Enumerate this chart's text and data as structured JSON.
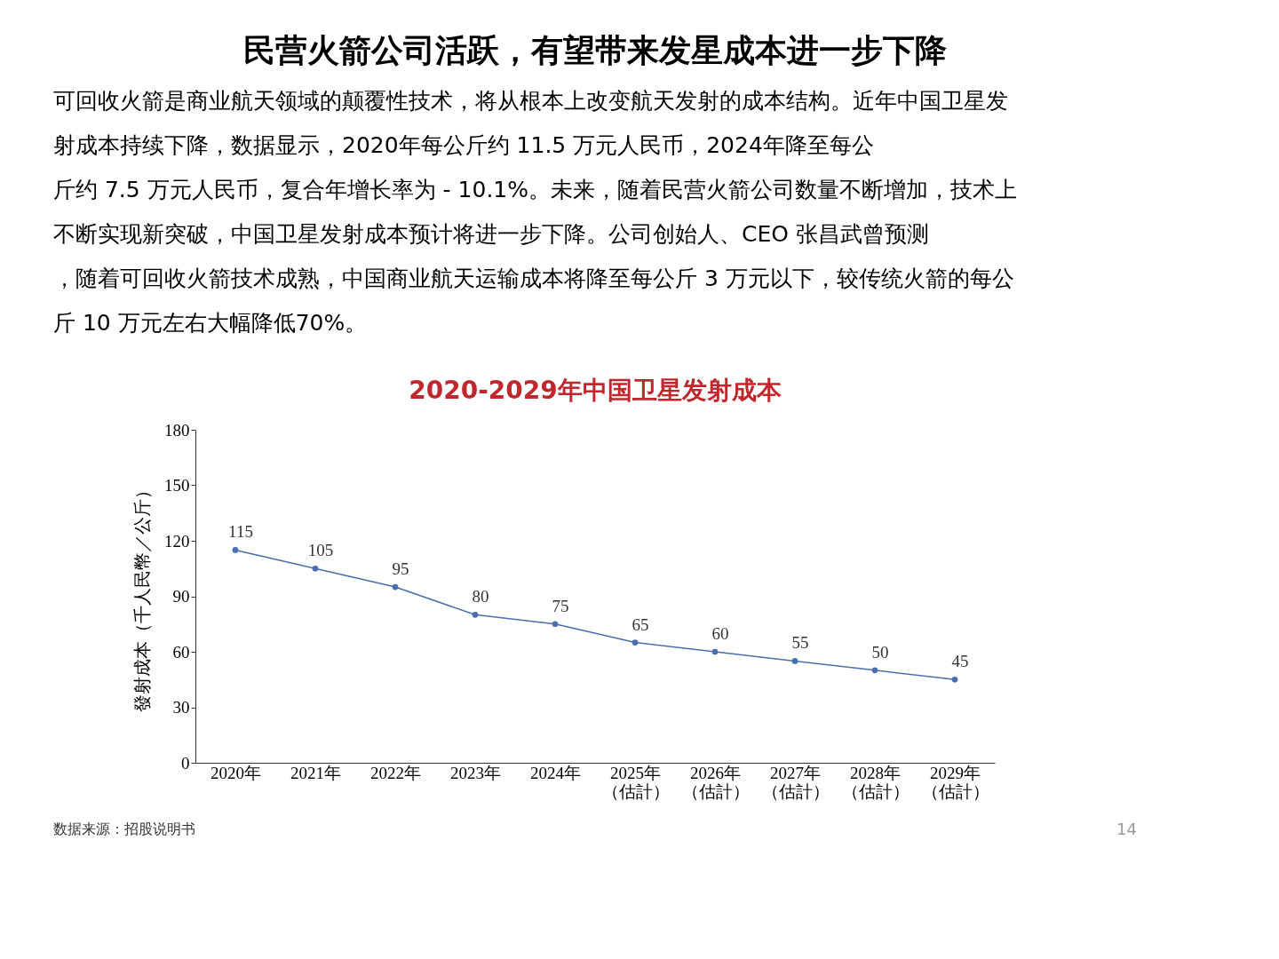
{
  "chart_data": {
    "type": "line",
    "title": "民营火箭公司活跃，有望带来发星成本进一步下降",
    "subtitle": "2020-2029年中国卫星发射成本",
    "ylabel": "發射成本（千人民幣／公斤）",
    "categories": [
      "2020年",
      "2021年",
      "2022年",
      "2023年",
      "2024年",
      "2025年（估計）",
      "2026年（估計）",
      "2027年（估計）",
      "2028年（估計）",
      "2029年（估計）"
    ],
    "series": [
      {
        "color": "#4a6fb0",
        "values": [
          115,
          105,
          95,
          80,
          75,
          65,
          60,
          55,
          50,
          45
        ]
      }
    ],
    "ylim": [
      0,
      180
    ],
    "yticks": [
      0,
      30,
      60,
      90,
      120,
      150,
      180
    ],
    "data_labels": true,
    "marker": "circle",
    "grid": false,
    "annotations": [
      "可回收火箭是商业航天领域的颠覆性技术，将从根本上改变航天发射的成本结构。近年中国卫星发",
      "射成本持续下降，数据显示，2020年每公斤约 11.5 万元人民币，2024年降至每公",
      "斤约 7.5 万元人民币，复合年增长率为 - 10.1%。未来，随着民营火箭公司数量不断增加，技术上",
      "不断实现新突破，中国卫星发射成本预计将进一步下降。公司创始人、CEO 张昌武曾预测",
      "，随着可回收火箭技术成熟，中国商业航天运输成本将降至每公斤 3 万元以下，较传统火箭的每公",
      "斤 10 万元左右大幅降低70%。",
      "数据来源：招股说明书",
      "14"
    ]
  }
}
